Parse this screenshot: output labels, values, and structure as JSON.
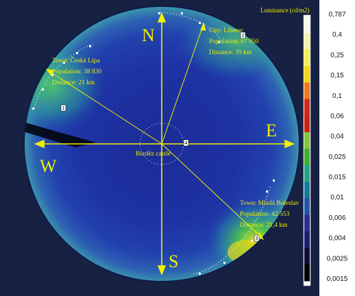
{
  "image": {
    "luminance_units": "Luminance (cd/m2)",
    "cardinals": {
      "north": "N",
      "east": "E",
      "south": "S",
      "west": "W"
    },
    "center_label": "Brzdëz castle",
    "towns": [
      {
        "id": "ceska-lipa",
        "name_line": "Town: Česká Lípa",
        "population_line": "Population: 38 830",
        "distance_line": "Distance: 21 km",
        "marker": "1"
      },
      {
        "id": "liberec",
        "name_line": "City: Liberec",
        "population_line": "Population: 97 950",
        "distance_line": "Distance: 35 km",
        "marker": "2"
      },
      {
        "id": "mlada-boleslav",
        "name_line": "Town: Mladá Boleslav",
        "population_line": "Population: 42 553",
        "distance_line": "Distance: 21,4 km",
        "marker": "3"
      }
    ],
    "center_marker": "4"
  },
  "colorbar": {
    "colors": {
      "top": "#ffffff",
      "steps": [
        "#f8f9e6",
        "#f3f3b0",
        "#f5ee52",
        "#f2d70d",
        "#ef7a1f",
        "#d9261c",
        "#cc2419",
        "#7fc83e",
        "#3fae33",
        "#28a089",
        "#177a9c",
        "#1f56a8",
        "#272f8f",
        "#1b1d6e",
        "#0d0e3a",
        "#020207"
      ]
    },
    "ticks": [
      "0,787",
      "0,4",
      "0,25",
      "0,15",
      "0,1",
      "0,06",
      "0,04",
      "0,025",
      "0,015",
      "0,01",
      "0,006",
      "0,004",
      "0,0025",
      "0,0015"
    ]
  }
}
